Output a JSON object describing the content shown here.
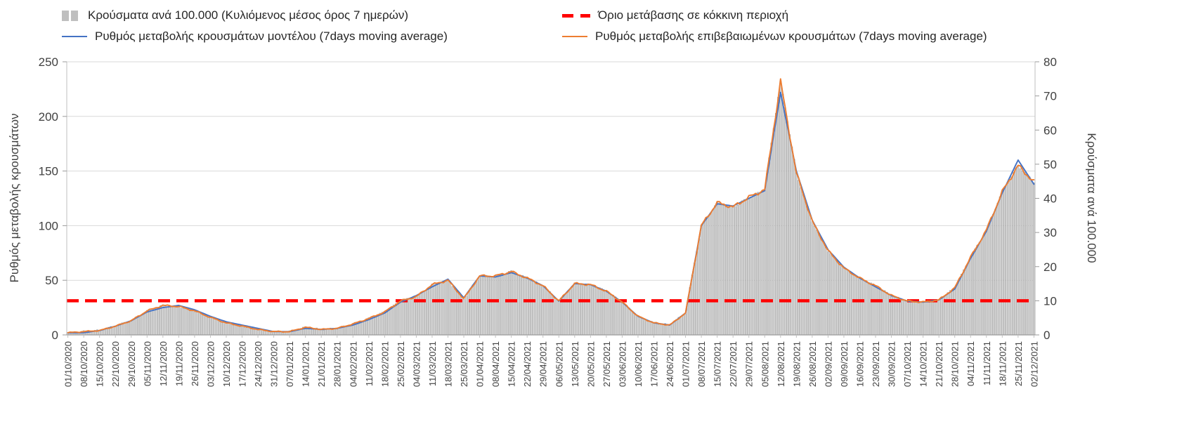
{
  "chart_data": {
    "type": "combo",
    "legend_position": "top",
    "grid": "horizontal",
    "x_labels": [
      "01/10/2020",
      "08/10/2020",
      "15/10/2020",
      "22/10/2020",
      "29/10/2020",
      "05/11/2020",
      "12/11/2020",
      "19/11/2020",
      "26/11/2020",
      "03/12/2020",
      "10/12/2020",
      "17/12/2020",
      "24/12/2020",
      "31/12/2020",
      "07/01/2021",
      "14/01/2021",
      "21/01/2021",
      "28/01/2021",
      "04/02/2021",
      "11/02/2021",
      "18/02/2021",
      "25/02/2021",
      "04/03/2021",
      "11/03/2021",
      "18/03/2021",
      "25/03/2021",
      "01/04/2021",
      "08/04/2021",
      "15/04/2021",
      "22/04/2021",
      "29/04/2021",
      "06/05/2021",
      "13/05/2021",
      "20/05/2021",
      "27/05/2021",
      "03/06/2021",
      "10/06/2021",
      "17/06/2021",
      "24/06/2021",
      "01/07/2021",
      "08/07/2021",
      "15/07/2021",
      "22/07/2021",
      "29/07/2021",
      "05/08/2021",
      "12/08/2021",
      "19/08/2021",
      "26/08/2021",
      "02/09/2021",
      "09/09/2021",
      "16/09/2021",
      "23/09/2021",
      "30/09/2021",
      "07/10/2021",
      "14/10/2021",
      "21/10/2021",
      "28/10/2021",
      "04/11/2021",
      "11/11/2021",
      "18/11/2021",
      "25/11/2021",
      "02/12/2021"
    ],
    "left_axis": {
      "title": "Ρυθμός μεταβολής κρουσμάτων",
      "min": 0,
      "max": 250,
      "step": 50
    },
    "right_axis": {
      "title": "Κρούσματα ανά 100.000",
      "min": 0,
      "max": 80,
      "step": 10
    },
    "series": [
      {
        "name": "Κρούσματα ανά 100.000 (Κυλιόμενος μέσος όρος 7 ημερών)",
        "type": "bar",
        "axis": "right",
        "color": "#d9d9d9",
        "edge_color": "#9f9f9f",
        "values": [
          0.6,
          1,
          1.3,
          2.6,
          4.2,
          7,
          8.6,
          8.3,
          7,
          5.1,
          3.5,
          2.6,
          1.6,
          1,
          1,
          2.2,
          1.6,
          1.9,
          3.2,
          4.8,
          6.7,
          9.9,
          11.2,
          14.7,
          16,
          10.6,
          17.3,
          17.3,
          18.6,
          16.6,
          14.4,
          9.9,
          15,
          14.7,
          12.8,
          9.6,
          5.4,
          3.5,
          2.9,
          6.4,
          32,
          38.7,
          37.4,
          40.3,
          42.6,
          74.2,
          47.4,
          33.3,
          24.6,
          19.5,
          16.6,
          14.4,
          11.5,
          9.9,
          9.6,
          10.2,
          13.8,
          22.7,
          30.7,
          41.9,
          49.6,
          44.8
        ]
      },
      {
        "name": "Όριο μετάβασης σε κόκκινη περιοχή",
        "type": "threshold",
        "axis": "right",
        "color": "#ff0000",
        "value": 10
      },
      {
        "name": "Ρυθμός μεταβολής κρουσμάτων μοντέλου (7days moving average)",
        "type": "line",
        "axis": "left",
        "color": "#4472c4",
        "values": [
          2,
          2,
          4,
          8,
          13,
          21,
          25,
          27,
          23,
          17,
          12,
          9,
          6,
          3,
          3,
          6,
          5,
          6,
          9,
          14,
          20,
          30,
          36,
          44,
          51,
          34,
          54,
          53,
          57,
          52,
          45,
          31,
          47,
          46,
          40,
          30,
          17,
          11,
          9,
          20,
          100,
          120,
          118,
          125,
          132,
          222,
          150,
          105,
          78,
          62,
          52,
          44,
          36,
          31,
          30,
          32,
          42,
          70,
          95,
          130,
          160,
          138
        ]
      },
      {
        "name": "Ρυθμός μεταβολής επιβεβαιωμένων κρουσμάτων (7days moving average)",
        "type": "line",
        "axis": "left",
        "color": "#ed7d31",
        "values": [
          2,
          3,
          4,
          8,
          13,
          22,
          27,
          26,
          22,
          16,
          11,
          8,
          5,
          3,
          3,
          7,
          5,
          6,
          10,
          15,
          21,
          31,
          35,
          46,
          50,
          33,
          54,
          54,
          58,
          52,
          45,
          31,
          47,
          46,
          40,
          30,
          17,
          11,
          9,
          20,
          100,
          121,
          117,
          126,
          133,
          232,
          148,
          104,
          77,
          61,
          52,
          45,
          36,
          31,
          30,
          32,
          43,
          71,
          96,
          131,
          155,
          140
        ]
      }
    ]
  }
}
